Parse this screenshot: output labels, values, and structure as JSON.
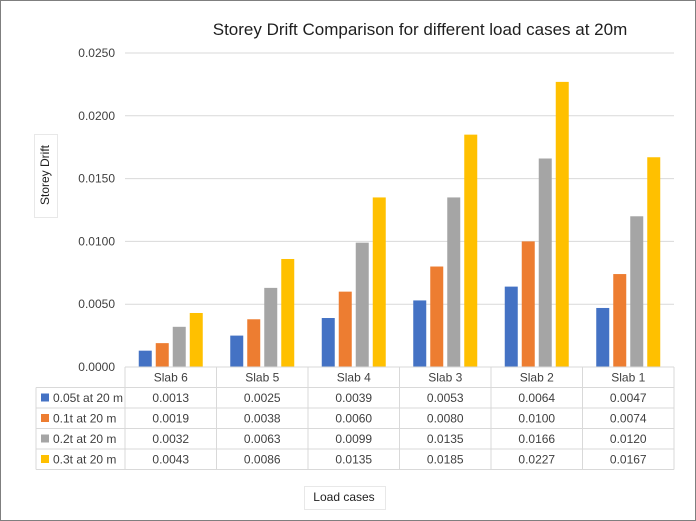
{
  "chart_data": {
    "type": "bar",
    "title": "Storey Drift Comparison  for different load cases at 20m",
    "ylabel": "Storey Drift",
    "xlabel": "Load cases",
    "ylim": [
      0,
      0.025
    ],
    "y_ticks": [
      "0.0000",
      "0.0050",
      "0.0100",
      "0.0150",
      "0.0200",
      "0.0250"
    ],
    "y_tick_values": [
      0,
      0.005,
      0.01,
      0.015,
      0.02,
      0.025
    ],
    "grid": true,
    "legend_placement": "data-table-left",
    "categories": [
      "Slab 6",
      "Slab 5",
      "Slab 4",
      "Slab 3",
      "Slab 2",
      "Slab 1"
    ],
    "series": [
      {
        "name": "0.05t at 20 m",
        "color": "#4472c4",
        "values": [
          0.0013,
          0.0025,
          0.0039,
          0.0053,
          0.0064,
          0.0047
        ],
        "labels": [
          "0.0013",
          "0.0025",
          "0.0039",
          "0.0053",
          "0.0064",
          "0.0047"
        ]
      },
      {
        "name": "0.1t at 20 m",
        "color": "#ed7d31",
        "values": [
          0.0019,
          0.0038,
          0.006,
          0.008,
          0.01,
          0.0074
        ],
        "labels": [
          "0.0019",
          "0.0038",
          "0.0060",
          "0.0080",
          "0.0100",
          "0.0074"
        ]
      },
      {
        "name": "0.2t at 20 m",
        "color": "#a5a5a5",
        "values": [
          0.0032,
          0.0063,
          0.0099,
          0.0135,
          0.0166,
          0.012
        ],
        "labels": [
          "0.0032",
          "0.0063",
          "0.0099",
          "0.0135",
          "0.0166",
          "0.0120"
        ]
      },
      {
        "name": "0.3t at 20 m",
        "color": "#ffc000",
        "values": [
          0.0043,
          0.0086,
          0.0135,
          0.0185,
          0.0227,
          0.0167
        ],
        "labels": [
          "0.0043",
          "0.0086",
          "0.0135",
          "0.0185",
          "0.0227",
          "0.0167"
        ]
      }
    ]
  }
}
